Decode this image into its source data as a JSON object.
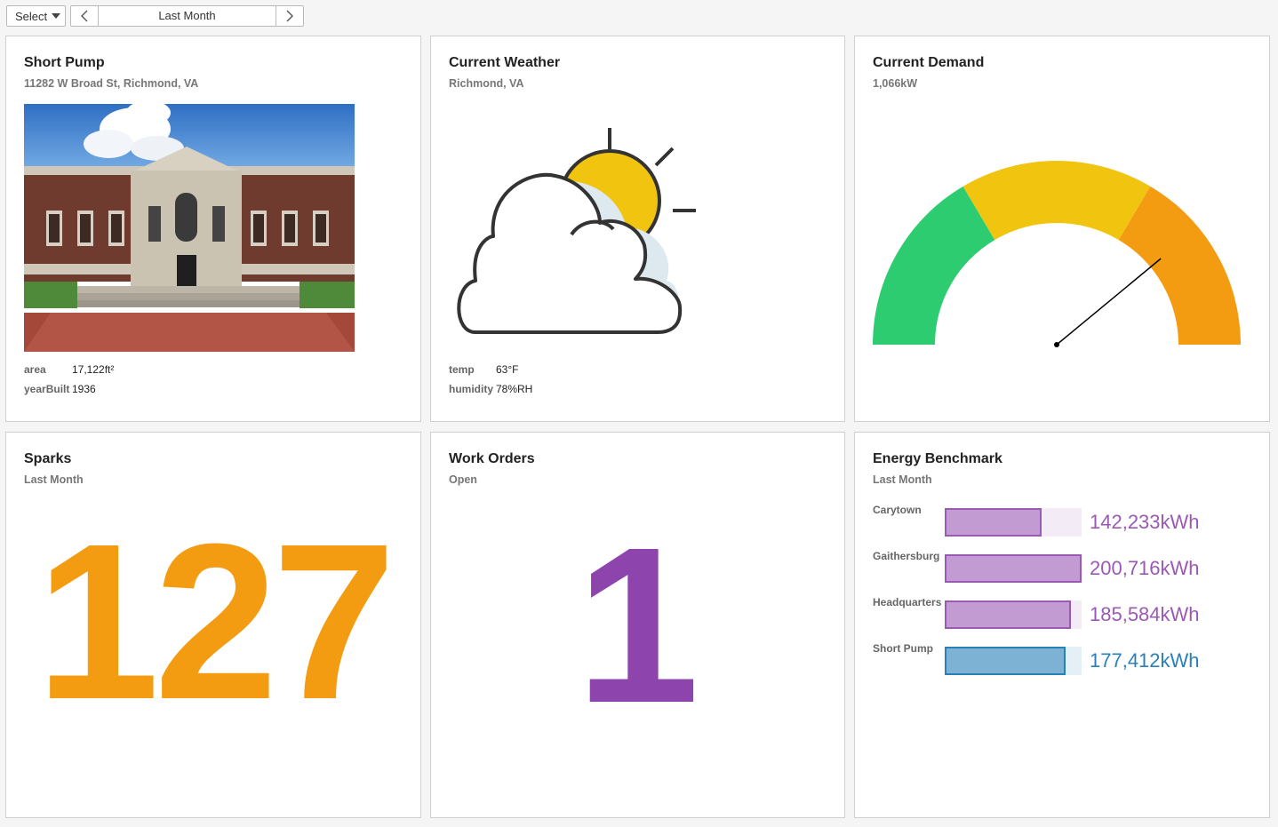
{
  "toolbar": {
    "select_label": "Select",
    "range_label": "Last Month",
    "prev_icon": "chevron-left-icon",
    "next_icon": "chevron-right-icon"
  },
  "site": {
    "title": "Short Pump",
    "address": "11282 W Broad St, Richmond, VA",
    "area_label": "area",
    "area_value": "17,122ft²",
    "year_label": "yearBuilt",
    "year_value": "1936"
  },
  "weather": {
    "title": "Current Weather",
    "location": "Richmond, VA",
    "temp_label": "temp",
    "temp_value": "63°F",
    "humidity_label": "humidity",
    "humidity_value": "78%RH",
    "icon": "partly-cloudy-icon"
  },
  "demand": {
    "title": "Current Demand",
    "value": "1,066kW",
    "needle_fraction": 0.78,
    "colors": {
      "green": "#2ecc71",
      "yellow": "#f1c40f",
      "orange": "#f39c12"
    }
  },
  "sparks": {
    "title": "Sparks",
    "subtitle": "Last Month",
    "count": "127",
    "color": "#f39c12"
  },
  "work_orders": {
    "title": "Work Orders",
    "subtitle": "Open",
    "count": "1",
    "color": "#8e44ad"
  },
  "benchmark": {
    "title": "Energy Benchmark",
    "subtitle": "Last Month",
    "max": 200716,
    "items": [
      {
        "name": "Carytown",
        "value": 142233,
        "label": "142,233kWh",
        "color": "#9b59b6"
      },
      {
        "name": "Gaithersburg",
        "value": 200716,
        "label": "200,716kWh",
        "color": "#9b59b6"
      },
      {
        "name": "Headquarters",
        "value": 185584,
        "label": "185,584kWh",
        "color": "#9b59b6"
      },
      {
        "name": "Short Pump",
        "value": 177412,
        "label": "177,412kWh",
        "color": "#2980b9"
      }
    ]
  }
}
